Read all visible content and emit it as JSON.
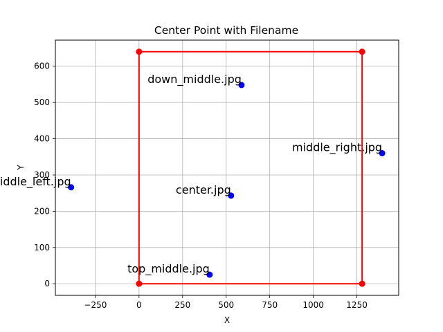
{
  "chart_data": {
    "type": "scatter",
    "title": "Center Point with Filename",
    "xlabel": "X",
    "ylabel": "Y",
    "xlim": [
      -480,
      1490
    ],
    "ylim": [
      -32,
      672
    ],
    "xticks": [
      -250,
      0,
      250,
      500,
      750,
      1000,
      1250
    ],
    "yticks": [
      0,
      100,
      200,
      300,
      400,
      500,
      600
    ],
    "grid": true,
    "colors": {
      "rectangle": "#ff0000",
      "points": "#0000ff"
    },
    "rectangle": {
      "corners": [
        {
          "x": 0,
          "y": 0
        },
        {
          "x": 1280,
          "y": 0
        },
        {
          "x": 1280,
          "y": 640
        },
        {
          "x": 0,
          "y": 640
        }
      ]
    },
    "points": [
      {
        "label": "down_middle.jpg",
        "x": 588,
        "y": 548
      },
      {
        "label": "middle_right.jpg",
        "x": 1395,
        "y": 360
      },
      {
        "label": "middle_left.jpg",
        "x": -390,
        "y": 266
      },
      {
        "label": "center.jpg",
        "x": 528,
        "y": 243
      },
      {
        "label": "top_middle.jpg",
        "x": 405,
        "y": 25
      }
    ]
  }
}
